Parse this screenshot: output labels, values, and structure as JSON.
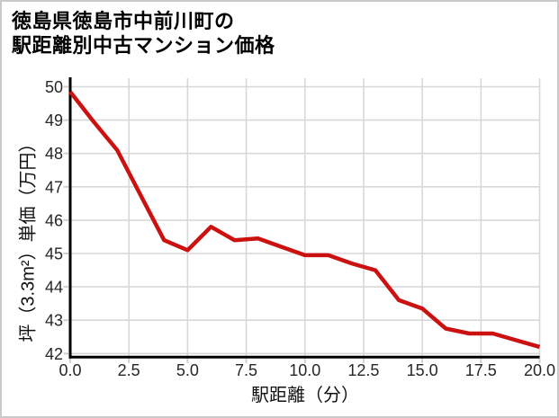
{
  "header": {
    "title_line1": "徳島県徳島市中前川町の",
    "title_line2": "駅距離別中古マンション価格"
  },
  "chart_data": {
    "type": "line",
    "title": "徳島県徳島市中前川町の駅距離別中古マンション価格",
    "xlabel": "駅距離（分）",
    "ylabel": "坪（3.3m²）単価（万円）",
    "x": [
      0,
      1,
      2,
      3,
      4,
      5,
      6,
      7,
      8,
      9,
      10,
      11,
      12,
      13,
      14,
      15,
      16,
      17,
      18,
      19,
      20
    ],
    "y": [
      49.85,
      48.95,
      48.1,
      46.75,
      45.4,
      45.1,
      45.8,
      45.4,
      45.45,
      45.2,
      44.95,
      44.95,
      44.7,
      44.5,
      43.6,
      43.35,
      42.75,
      42.6,
      42.6,
      42.4,
      42.2
    ],
    "xlim": [
      0,
      20
    ],
    "ylim": [
      42,
      50
    ],
    "xticks": [
      0,
      2.5,
      5,
      7.5,
      10,
      12.5,
      15,
      17.5,
      20
    ],
    "xtick_labels": [
      "0.0",
      "2.5",
      "5.0",
      "7.5",
      "10.0",
      "12.5",
      "15.0",
      "17.5",
      "20.0"
    ],
    "yticks": [
      42,
      43,
      44,
      45,
      46,
      47,
      48,
      49,
      50
    ],
    "ytick_labels": [
      "42",
      "43",
      "44",
      "45",
      "46",
      "47",
      "48",
      "49",
      "50"
    ],
    "grid": true,
    "legend": false,
    "line_color": "#cc1111"
  },
  "colors": {
    "line": "#cc1111",
    "grid": "#d8d8d8",
    "tick": "#cfcfcf",
    "spine": "#000000",
    "tick_label": "#262626",
    "border": "#c9c9c9",
    "background": "#ffffff"
  }
}
